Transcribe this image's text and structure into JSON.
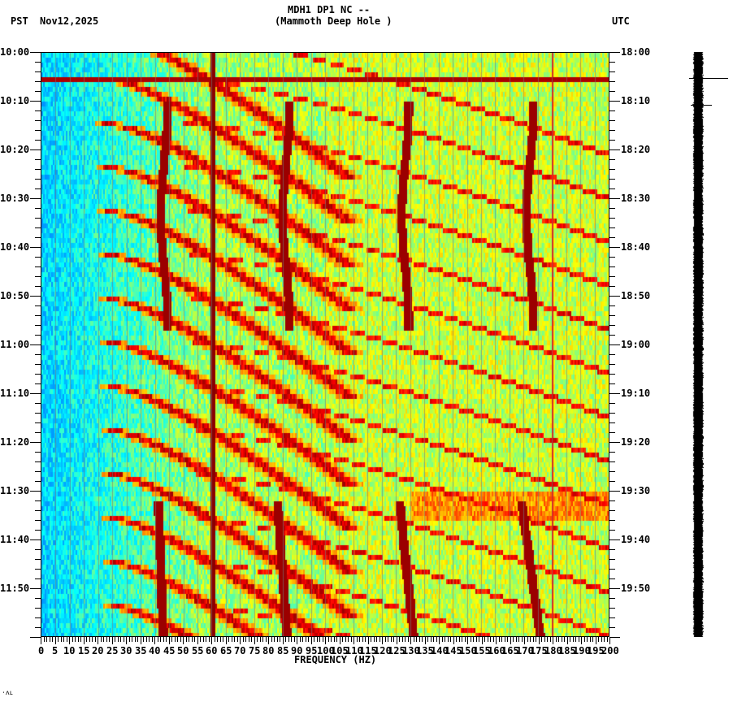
{
  "header": {
    "station_title": "MDH1 DP1 NC --",
    "station_name": "(Mammoth Deep Hole )",
    "left_timezone": "PST",
    "date": "Nov12,2025",
    "right_timezone": "UTC"
  },
  "footer": {
    "xaxis_title": "FREQUENCY (HZ)",
    "corner_mark": "⋅ʌʟ"
  },
  "colors": {
    "background": "#ffffff",
    "colormap": [
      "#0050ff",
      "#00a0ff",
      "#00ffff",
      "#80ff80",
      "#ffff00",
      "#ff8000",
      "#ff0000",
      "#800000"
    ],
    "seismogram_trace": "#000000"
  },
  "chart_data": {
    "type": "heatmap",
    "title": "MDH1 DP1 NC -- (Mammoth Deep Hole )",
    "subtitle": "Nov12,2025",
    "xlabel": "FREQUENCY (HZ)",
    "ylabel_left": "PST",
    "ylabel_right": "UTC",
    "xlim": [
      0,
      200
    ],
    "x_ticks": [
      0,
      5,
      10,
      15,
      20,
      25,
      30,
      35,
      40,
      45,
      50,
      55,
      60,
      65,
      70,
      75,
      80,
      85,
      90,
      95,
      100,
      105,
      110,
      115,
      120,
      125,
      130,
      135,
      140,
      145,
      150,
      155,
      160,
      165,
      170,
      175,
      180,
      185,
      190,
      195,
      200
    ],
    "y_ticks_left": [
      "10:00",
      "10:10",
      "10:20",
      "10:30",
      "10:40",
      "10:50",
      "11:00",
      "11:10",
      "11:20",
      "11:30",
      "11:40",
      "11:50"
    ],
    "y_ticks_right": [
      "18:00",
      "18:10",
      "18:20",
      "18:30",
      "18:40",
      "18:50",
      "19:00",
      "19:10",
      "19:20",
      "19:30",
      "19:40",
      "19:50"
    ],
    "time_range_pst": [
      "10:00",
      "12:00"
    ],
    "time_range_utc": [
      "18:00",
      "20:00"
    ],
    "features": {
      "constant_lines_hz": [
        60,
        180
      ],
      "wandering_tones": [
        {
          "segment": "10:10-10:57",
          "approx_hz": [
            43,
            86,
            128,
            172
          ]
        },
        {
          "segment": "11:32-12:00",
          "approx_hz": [
            41,
            83,
            126,
            169
          ]
        }
      ],
      "broadband_event_time": "10:05",
      "elevated_noise_band": "11:30-11:36",
      "gliding_arcs": "repeating curved chirps sweeping upward in frequency, period ~10-20 min"
    },
    "colorscale": "jet (blue low -> dark red high)",
    "grid": false
  }
}
